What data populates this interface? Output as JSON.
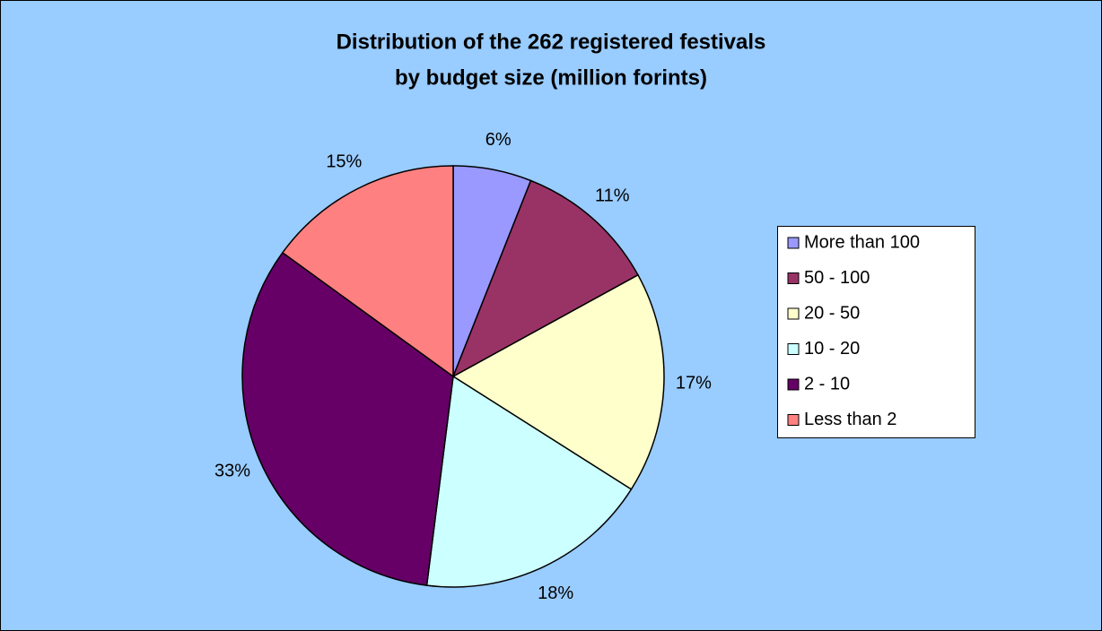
{
  "chart_data": {
    "type": "pie",
    "title": [
      "Distribution of the 262 registered festivals",
      "by budget size (million forints)"
    ],
    "categories": [
      "More than 100",
      "50 - 100",
      "20 - 50",
      "10 - 20",
      "2 - 10",
      "Less than 2"
    ],
    "values": [
      6,
      11,
      17,
      18,
      33,
      15
    ],
    "value_labels": [
      "6%",
      "11%",
      "17%",
      "18%",
      "33%",
      "15%"
    ],
    "colors": [
      "#9999ff",
      "#993366",
      "#ffffcc",
      "#ccffff",
      "#660066",
      "#ff8080"
    ],
    "legend": "right"
  }
}
